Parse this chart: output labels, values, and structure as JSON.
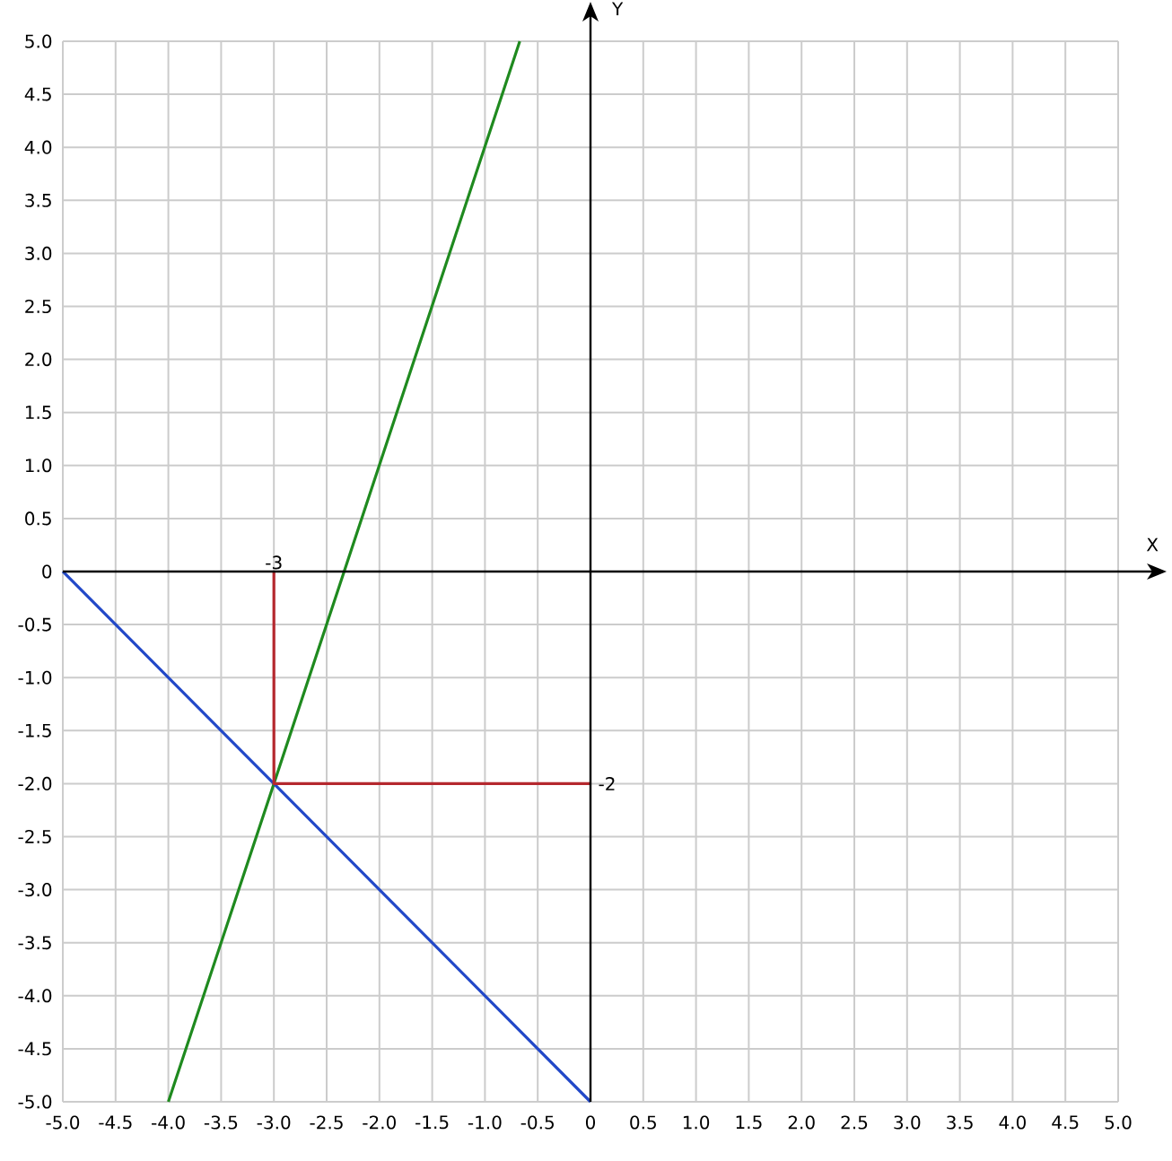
{
  "chart_data": {
    "type": "line",
    "xlabel": "X",
    "ylabel": "Y",
    "xlim": [
      -5,
      5
    ],
    "ylim": [
      -5,
      5
    ],
    "xticks": [
      {
        "value": -5,
        "label": "-5.0"
      },
      -4.5,
      {
        "value": -4,
        "label": "-4.0"
      },
      -3.5,
      {
        "value": -3,
        "label": "-3.0"
      },
      -2.5,
      {
        "value": -2,
        "label": "-2.0"
      },
      -1.5,
      {
        "value": -1,
        "label": "-1.0"
      },
      -0.5,
      0,
      0.5,
      {
        "value": 1,
        "label": "1.0"
      },
      1.5,
      {
        "value": 2,
        "label": "2.0"
      },
      2.5,
      {
        "value": 3,
        "label": "3.0"
      },
      3.5,
      {
        "value": 4,
        "label": "4.0"
      },
      4.5,
      {
        "value": 5,
        "label": "5.0"
      }
    ],
    "yticks": [
      {
        "value": -5,
        "label": "-5.0"
      },
      -4.5,
      {
        "value": -4,
        "label": "-4.0"
      },
      -3.5,
      {
        "value": -3,
        "label": "-3.0"
      },
      -2.5,
      {
        "value": -2,
        "label": "-2.0"
      },
      -1.5,
      {
        "value": -1,
        "label": "-1.0"
      },
      -0.5,
      0,
      0.5,
      {
        "value": 1,
        "label": "1.0"
      },
      1.5,
      {
        "value": 2,
        "label": "2.0"
      },
      2.5,
      {
        "value": 3,
        "label": "3.0"
      },
      3.5,
      {
        "value": 4,
        "label": "4.0"
      },
      4.5,
      {
        "value": 5,
        "label": "5.0"
      }
    ],
    "grid": true,
    "line_style": "solid",
    "series": [
      {
        "color": "#1f8a1f",
        "x": [
          -4,
          -3,
          -0.67
        ],
        "values": [
          -5,
          -2,
          5
        ]
      },
      {
        "color": "#2248c8",
        "x": [
          -5,
          -3,
          0
        ],
        "values": [
          0,
          -2,
          -5
        ]
      },
      {
        "color": "#b5282e",
        "x": [
          -3,
          -3,
          0
        ],
        "values": [
          0,
          -2,
          -2
        ]
      }
    ],
    "annotations": [
      {
        "text": "-3",
        "x": -3,
        "y": 0
      },
      {
        "text": "-2",
        "x": 0,
        "y": -2
      }
    ]
  }
}
